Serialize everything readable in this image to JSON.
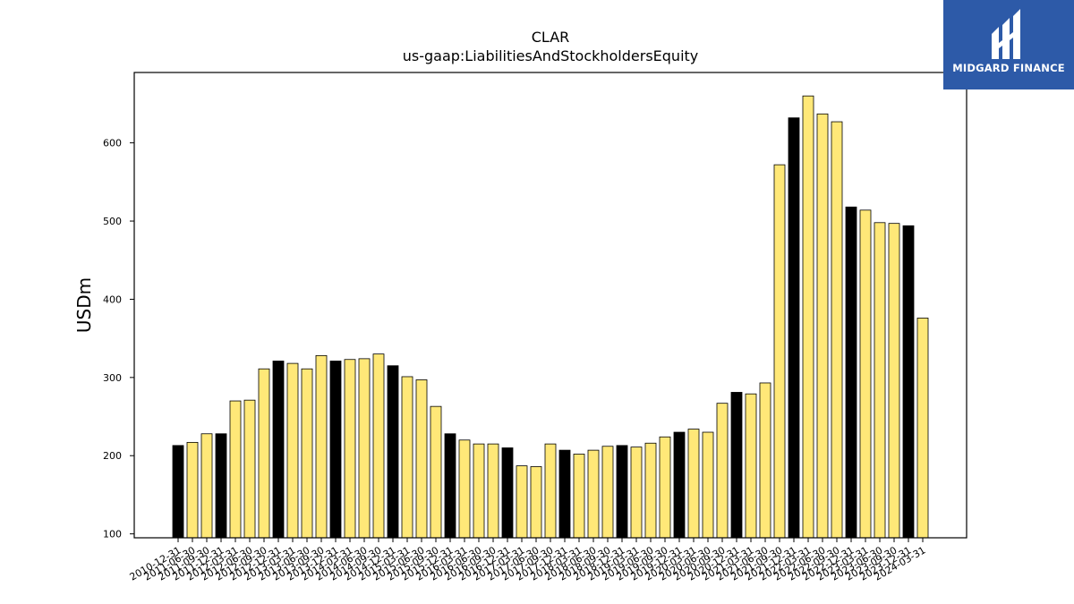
{
  "brand": {
    "name": "MIDGARD FINANCE",
    "background_color": "#2d5aa8"
  },
  "colors": {
    "highlight": "#000000",
    "bar": "#ffe878",
    "axis": "#000000"
  },
  "chart_data": {
    "type": "bar",
    "title": "CLAR",
    "subtitle": "us-gaap:LiabilitiesAndStockholdersEquity",
    "xlabel": "",
    "ylabel": "USDm",
    "ylim": [
      95,
      690
    ],
    "yticks": [
      100,
      200,
      300,
      400,
      500,
      600
    ],
    "grid": false,
    "categories": [
      "2010-12-31",
      "2011-06-30",
      "2011-09-30",
      "2011-12-31",
      "2012-03-31",
      "2012-06-30",
      "2012-09-30",
      "2012-12-31",
      "2013-03-31",
      "2013-06-30",
      "2013-09-30",
      "2013-12-31",
      "2014-03-31",
      "2014-06-30",
      "2014-09-30",
      "2014-12-31",
      "2015-03-31",
      "2015-06-30",
      "2015-09-30",
      "2015-12-31",
      "2016-03-31",
      "2016-06-30",
      "2016-09-30",
      "2016-12-31",
      "2017-03-31",
      "2017-06-30",
      "2017-09-30",
      "2017-12-31",
      "2018-03-31",
      "2018-06-30",
      "2018-09-30",
      "2018-12-31",
      "2019-03-31",
      "2019-06-30",
      "2019-09-30",
      "2019-12-31",
      "2020-03-31",
      "2020-06-30",
      "2020-09-30",
      "2020-12-31",
      "2021-03-31",
      "2021-06-30",
      "2021-09-30",
      "2021-12-31",
      "2022-03-31",
      "2022-06-30",
      "2022-09-30",
      "2022-12-31",
      "2023-03-31",
      "2023-06-30",
      "2023-09-30",
      "2023-12-31",
      "2024-03-31"
    ],
    "values": [
      213,
      217,
      228,
      228,
      270,
      271,
      311,
      321,
      318,
      311,
      328,
      321,
      323,
      324,
      330,
      315,
      301,
      297,
      263,
      228,
      220,
      215,
      215,
      210,
      187,
      186,
      215,
      207,
      202,
      207,
      212,
      213,
      211,
      216,
      224,
      230,
      234,
      230,
      267,
      281,
      279,
      293,
      572,
      632,
      660,
      637,
      627,
      518,
      514,
      498,
      497,
      494,
      376
    ],
    "highlighted": [
      true,
      false,
      false,
      true,
      false,
      false,
      false,
      true,
      false,
      false,
      false,
      true,
      false,
      false,
      false,
      true,
      false,
      false,
      false,
      true,
      false,
      false,
      false,
      true,
      false,
      false,
      false,
      true,
      false,
      false,
      false,
      true,
      false,
      false,
      false,
      true,
      false,
      false,
      false,
      true,
      false,
      false,
      false,
      true,
      false,
      false,
      false,
      true,
      false,
      false,
      false,
      true,
      false
    ]
  }
}
